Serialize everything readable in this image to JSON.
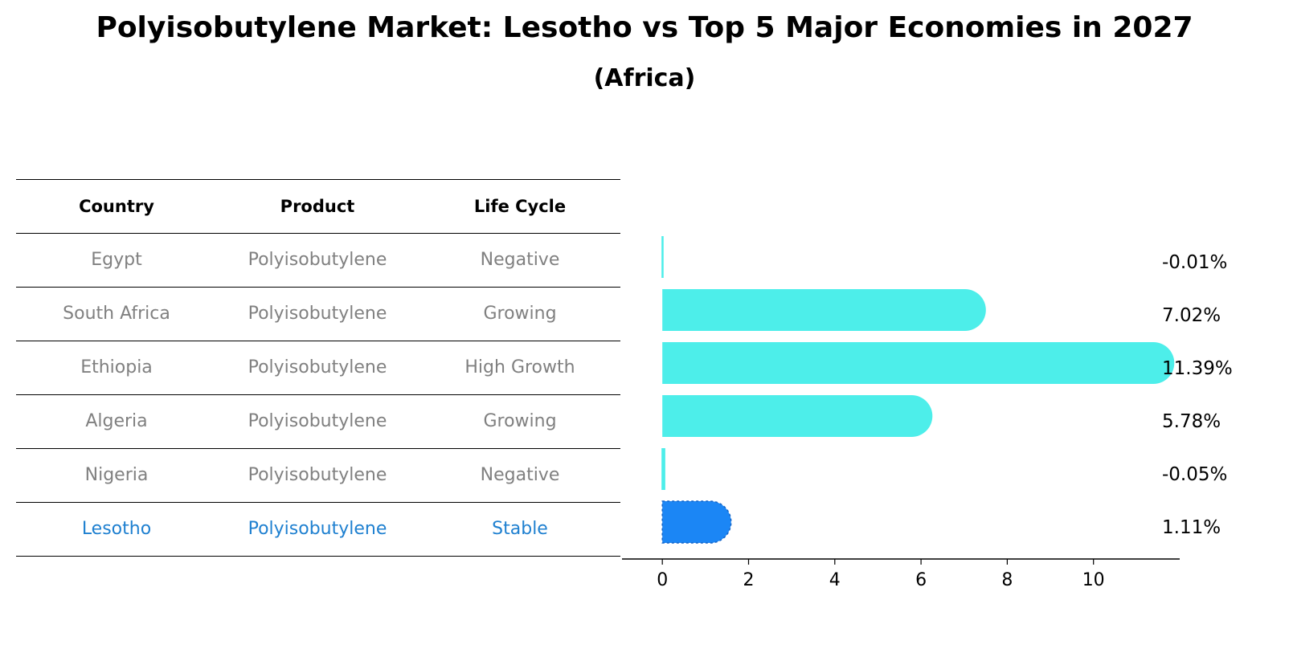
{
  "title": "Polyisobutylene Market: Lesotho vs Top 5 Major Economies in 2027",
  "subtitle": "(Africa)",
  "table": {
    "headers": [
      "Country",
      "Product",
      "Life Cycle"
    ],
    "rows": [
      [
        "Egypt",
        "Polyisobutylene",
        "Negative"
      ],
      [
        "South Africa",
        "Polyisobutylene",
        "Growing"
      ],
      [
        "Ethiopia",
        "Polyisobutylene",
        "High Growth"
      ],
      [
        "Algeria",
        "Polyisobutylene",
        "Growing"
      ],
      [
        "Nigeria",
        "Polyisobutylene",
        "Negative"
      ],
      [
        "Lesotho",
        "Polyisobutylene",
        "Stable"
      ]
    ]
  },
  "chart_data": {
    "type": "bar",
    "orientation": "horizontal",
    "categories": [
      "Egypt",
      "South Africa",
      "Ethiopia",
      "Algeria",
      "Nigeria",
      "Lesotho"
    ],
    "values": [
      -0.01,
      7.02,
      11.39,
      5.78,
      -0.05,
      1.11
    ],
    "value_labels": [
      "-0.01%",
      "7.02%",
      "11.39%",
      "5.78%",
      "-0.05%",
      "1.11%"
    ],
    "xlim": [
      -0.6,
      12.0
    ],
    "xticks": [
      0,
      2,
      4,
      6,
      8,
      10
    ],
    "highlight_category": "Lesotho",
    "colors": {
      "default": "#4deeea",
      "highlight": "#1b86f5"
    }
  }
}
